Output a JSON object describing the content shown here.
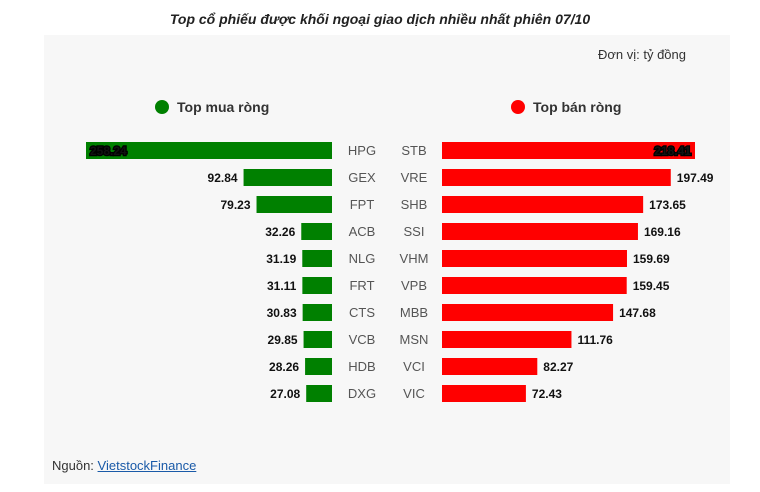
{
  "title": "Top cổ phiếu được khối ngoại giao dịch nhiều nhất phiên 07/10",
  "unit": "Đơn vị: tỷ đồng",
  "source_label": "Nguồn:",
  "source_link": "VietstockFinance",
  "colors": {
    "buy": "#008000",
    "sell": "#ff0000",
    "background": "#f7f7f7"
  },
  "chart_data": {
    "type": "bar",
    "title": "Top cổ phiếu được khối ngoại giao dịch nhiều nhất phiên 07/10",
    "unit": "Đơn vị: tỷ đồng",
    "series": [
      {
        "name": "Top mua ròng",
        "categories": [
          "HPG",
          "GEX",
          "FPT",
          "ACB",
          "NLG",
          "FRT",
          "CTS",
          "VCB",
          "HDB",
          "DXG"
        ],
        "values": [
          258.24,
          92.84,
          79.23,
          32.26,
          31.19,
          31.11,
          30.83,
          29.85,
          28.26,
          27.08
        ],
        "labels": [
          "258.24",
          "92.84",
          "79.23",
          "32.26",
          "31.19",
          "31.11",
          "30.83",
          "29.85",
          "28.26",
          "27.08"
        ]
      },
      {
        "name": "Top bán ròng",
        "categories": [
          "STB",
          "VRE",
          "SHB",
          "SSI",
          "VHM",
          "VPB",
          "MBB",
          "MSN",
          "VCI",
          "VIC"
        ],
        "values": [
          218.41,
          197.49,
          173.65,
          169.16,
          159.69,
          159.45,
          147.68,
          111.76,
          82.27,
          72.43
        ],
        "labels": [
          "218.41",
          "197.49",
          "173.65",
          "169.16",
          "159.69",
          "159.45",
          "147.68",
          "111.76",
          "82.27",
          "72.43"
        ]
      }
    ],
    "xlim": [
      0,
      258.24
    ]
  }
}
